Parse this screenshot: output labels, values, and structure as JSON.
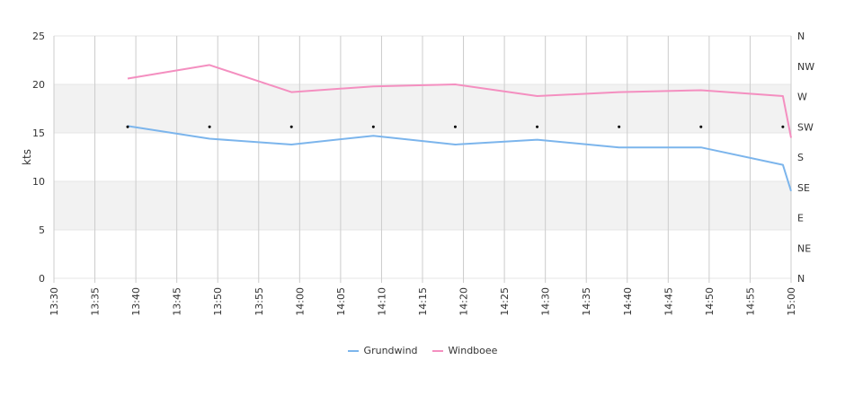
{
  "chart_data": {
    "type": "line",
    "ylabel": "kts",
    "ylim": [
      0,
      25
    ],
    "y_ticks": [
      "0",
      "5",
      "10",
      "15",
      "20",
      "25"
    ],
    "y2_ticks": [
      "N",
      "NE",
      "E",
      "SE",
      "S",
      "SW",
      "W",
      "NW",
      "N"
    ],
    "x_ticks": [
      "13:30",
      "13:35",
      "13:40",
      "13:45",
      "13:50",
      "13:55",
      "14:00",
      "14:05",
      "14:10",
      "14:15",
      "14:20",
      "14:25",
      "14:30",
      "14:35",
      "14:40",
      "14:45",
      "14:50",
      "14:55",
      "15:00"
    ],
    "x_range_minutes": [
      810,
      900
    ],
    "bands": [
      [
        5,
        10
      ],
      [
        15,
        20
      ]
    ],
    "grid": true,
    "legend_position": "bottom",
    "series": [
      {
        "name": "Grundwind",
        "color": "#7cb5ec",
        "x": [
          "13:39",
          "13:49",
          "13:59",
          "14:09",
          "14:19",
          "14:29",
          "14:39",
          "14:49",
          "14:59",
          "15:00"
        ],
        "values": [
          15.7,
          14.4,
          13.8,
          14.7,
          13.8,
          14.3,
          13.5,
          13.5,
          11.7,
          9.0
        ]
      },
      {
        "name": "Windboee",
        "color": "#f48fc0",
        "x": [
          "13:39",
          "13:49",
          "13:59",
          "14:09",
          "14:19",
          "14:29",
          "14:39",
          "14:49",
          "14:59",
          "15:00"
        ],
        "values": [
          20.6,
          22.0,
          19.2,
          19.8,
          20.0,
          18.8,
          19.2,
          19.4,
          18.8,
          14.5
        ]
      }
    ],
    "direction": {
      "x": [
        "13:39",
        "13:49",
        "13:59",
        "14:09",
        "14:19",
        "14:29",
        "14:39",
        "14:49",
        "14:59"
      ],
      "values": [
        "SW",
        "SW",
        "SW",
        "SW",
        "SW",
        "SW",
        "SW",
        "SW",
        "SW"
      ]
    }
  }
}
